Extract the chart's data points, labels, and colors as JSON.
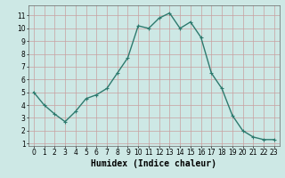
{
  "x": [
    0,
    1,
    2,
    3,
    4,
    5,
    6,
    7,
    8,
    9,
    10,
    11,
    12,
    13,
    14,
    15,
    16,
    17,
    18,
    19,
    20,
    21,
    22,
    23
  ],
  "y": [
    5.0,
    4.0,
    3.3,
    2.7,
    3.5,
    4.5,
    4.8,
    5.3,
    6.5,
    7.7,
    10.2,
    10.0,
    10.8,
    11.2,
    10.0,
    10.5,
    9.3,
    6.5,
    5.3,
    3.2,
    2.0,
    1.5,
    1.3,
    1.3
  ],
  "line_color": "#2d7a6e",
  "marker": "+",
  "marker_size": 3,
  "bg_color": "#cde8e5",
  "grid_color": "#b0cece",
  "xlabel": "Humidex (Indice chaleur)",
  "xlabel_fontsize": 7,
  "xlim": [
    -0.5,
    23.5
  ],
  "ylim": [
    0.8,
    11.8
  ],
  "yticks": [
    1,
    2,
    3,
    4,
    5,
    6,
    7,
    8,
    9,
    10,
    11
  ],
  "xticks": [
    0,
    1,
    2,
    3,
    4,
    5,
    6,
    7,
    8,
    9,
    10,
    11,
    12,
    13,
    14,
    15,
    16,
    17,
    18,
    19,
    20,
    21,
    22,
    23
  ],
  "tick_fontsize": 5.5,
  "line_width": 1.0
}
